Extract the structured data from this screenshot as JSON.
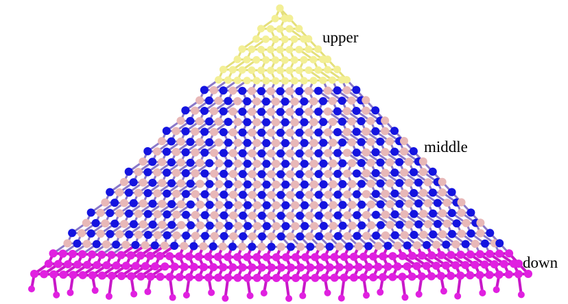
{
  "labels": {
    "upper": "upper",
    "middle": "middle",
    "down": "down"
  },
  "colors": {
    "upper_atoms": "#f3ef96",
    "upper_bonds": "#e4df7a",
    "blue_atoms": "#1414e0",
    "pink_atoms": "#e8b8b8",
    "middle_bonds": "#8a78c8",
    "down_atoms": "#e020e0",
    "down_bonds": "#c818c8"
  }
}
